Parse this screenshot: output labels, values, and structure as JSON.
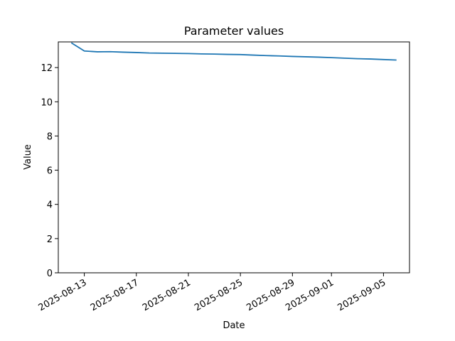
{
  "chart_data": {
    "type": "line",
    "title": "Parameter values",
    "x_label": "Date",
    "y_label": "Value",
    "x": [
      "2025-08-12",
      "2025-08-13",
      "2025-08-14",
      "2025-08-15",
      "2025-08-16",
      "2025-08-17",
      "2025-08-18",
      "2025-08-19",
      "2025-08-20",
      "2025-08-21",
      "2025-08-22",
      "2025-08-23",
      "2025-08-24",
      "2025-08-25",
      "2025-08-26",
      "2025-08-27",
      "2025-08-28",
      "2025-08-29",
      "2025-08-30",
      "2025-08-31",
      "2025-09-01",
      "2025-09-02",
      "2025-09-03",
      "2025-09-04",
      "2025-09-05",
      "2025-09-06"
    ],
    "series": [
      {
        "color": "#1f77b4",
        "values": [
          13.45,
          12.97,
          12.92,
          12.93,
          12.9,
          12.88,
          12.85,
          12.84,
          12.83,
          12.82,
          12.8,
          12.79,
          12.77,
          12.76,
          12.73,
          12.7,
          12.68,
          12.65,
          12.63,
          12.61,
          12.58,
          12.55,
          12.52,
          12.5,
          12.47,
          12.44
        ]
      }
    ],
    "xlim": [
      "2025-08-11",
      "2025-09-07"
    ],
    "xticks": [
      "2025-08-13",
      "2025-08-17",
      "2025-08-21",
      "2025-08-25",
      "2025-08-29",
      "2025-09-01",
      "2025-09-05"
    ],
    "ylim": [
      0,
      13.5
    ],
    "yticks": [
      0,
      2,
      4,
      6,
      8,
      10,
      12
    ]
  }
}
